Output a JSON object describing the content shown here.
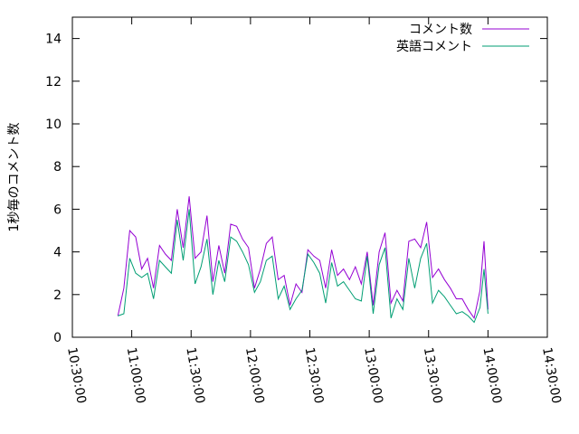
{
  "chart_data": {
    "type": "line",
    "ylabel": "1秒毎のコメント数",
    "x": [
      "10:53:00",
      "10:56:00",
      "10:59:00",
      "11:02:00",
      "11:05:00",
      "11:08:00",
      "11:11:00",
      "11:14:00",
      "11:17:00",
      "11:20:00",
      "11:23:00",
      "11:26:00",
      "11:29:00",
      "11:32:00",
      "11:35:00",
      "11:38:00",
      "11:41:00",
      "11:44:00",
      "11:47:00",
      "11:50:00",
      "11:53:00",
      "11:56:00",
      "11:59:00",
      "12:02:00",
      "12:05:00",
      "12:08:00",
      "12:11:00",
      "12:14:00",
      "12:17:00",
      "12:20:00",
      "12:23:00",
      "12:26:00",
      "12:29:00",
      "12:32:00",
      "12:35:00",
      "12:38:00",
      "12:41:00",
      "12:44:00",
      "12:47:00",
      "12:50:00",
      "12:53:00",
      "12:56:00",
      "12:59:00",
      "13:02:00",
      "13:05:00",
      "13:08:00",
      "13:11:00",
      "13:14:00",
      "13:17:00",
      "13:20:00",
      "13:23:00",
      "13:26:00",
      "13:29:00",
      "13:32:00",
      "13:35:00",
      "13:38:00",
      "13:41:00",
      "13:44:00",
      "13:47:00",
      "13:50:00",
      "13:53:00",
      "13:56:00",
      "13:58:00",
      "14:00:00"
    ],
    "series": [
      {
        "name": "コメント数",
        "color": "#9400d3",
        "values": [
          1.0,
          2.3,
          5.0,
          4.7,
          3.2,
          3.7,
          2.3,
          4.3,
          3.9,
          3.6,
          6.0,
          4.2,
          6.6,
          3.7,
          4.0,
          5.7,
          2.6,
          4.3,
          3.0,
          5.3,
          5.2,
          4.6,
          4.2,
          2.3,
          3.2,
          4.4,
          4.7,
          2.7,
          2.9,
          1.5,
          2.5,
          2.1,
          4.1,
          3.8,
          3.6,
          2.3,
          4.1,
          2.9,
          3.2,
          2.7,
          3.3,
          2.5,
          4.0,
          1.5,
          4.0,
          4.9,
          1.6,
          2.2,
          1.7,
          4.5,
          4.6,
          4.2,
          5.4,
          2.8,
          3.2,
          2.7,
          2.3,
          1.8,
          1.8,
          1.3,
          0.9,
          2.2,
          4.5,
          1.3
        ]
      },
      {
        "name": "英語コメント",
        "color": "#009e73",
        "values": [
          1.0,
          1.1,
          3.7,
          3.0,
          2.8,
          3.0,
          1.8,
          3.6,
          3.3,
          3.0,
          5.5,
          3.6,
          6.0,
          2.5,
          3.3,
          4.6,
          2.0,
          3.6,
          2.6,
          4.7,
          4.5,
          4.0,
          3.4,
          2.1,
          2.6,
          3.6,
          3.8,
          1.8,
          2.4,
          1.3,
          1.8,
          2.2,
          3.9,
          3.5,
          3.0,
          1.6,
          3.5,
          2.4,
          2.6,
          2.2,
          1.8,
          1.7,
          3.8,
          1.1,
          3.4,
          4.2,
          0.9,
          1.8,
          1.3,
          3.7,
          2.3,
          3.7,
          4.4,
          1.6,
          2.2,
          1.9,
          1.5,
          1.1,
          1.2,
          1.0,
          0.7,
          1.4,
          3.2,
          1.1
        ]
      }
    ],
    "xlim": [
      "10:30:00",
      "14:30:00"
    ],
    "xticks": [
      "10:30:00",
      "11:00:00",
      "11:30:00",
      "12:00:00",
      "12:30:00",
      "13:00:00",
      "13:30:00",
      "14:00:00",
      "14:30:00"
    ],
    "ylim": [
      0,
      15
    ],
    "yticks": [
      0,
      2,
      4,
      6,
      8,
      10,
      12,
      14
    ],
    "legend": "top-right"
  }
}
